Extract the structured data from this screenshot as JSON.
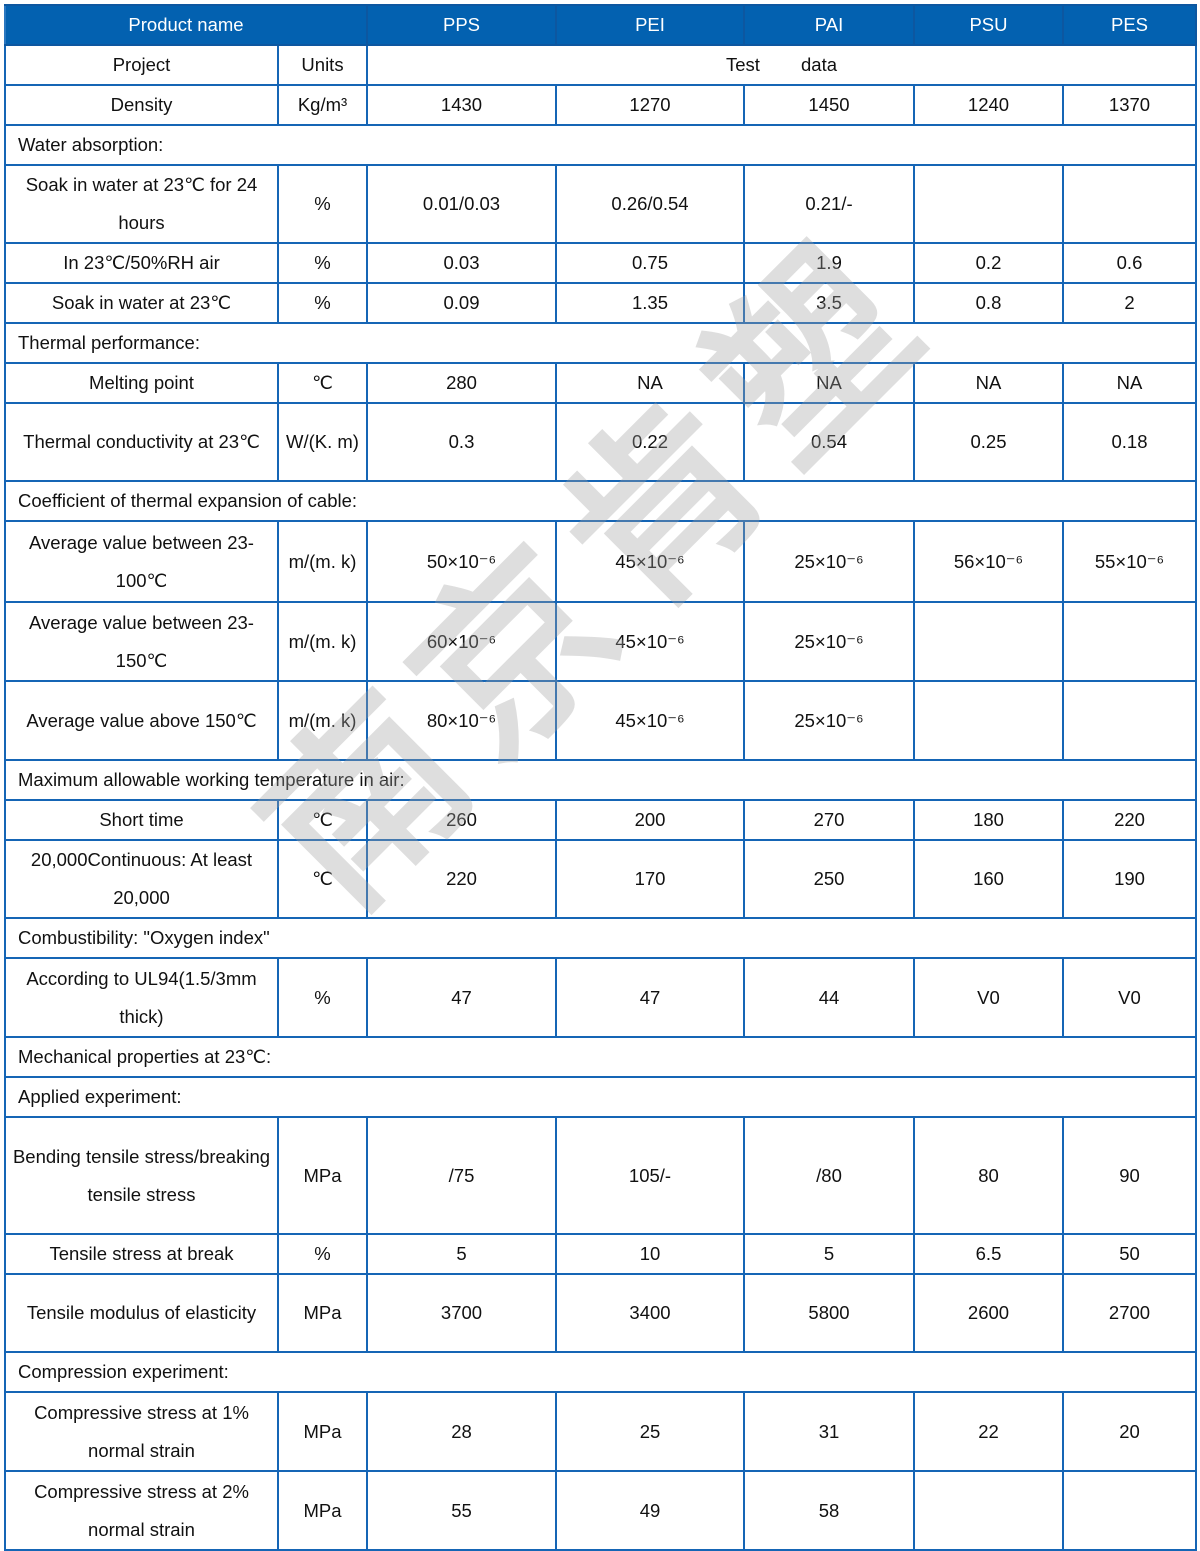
{
  "watermark": "南京肯塑",
  "colors": {
    "header_bg": "#0361b0",
    "border": "#1565b5"
  },
  "header": {
    "label": "Product name",
    "columns": [
      "PPS",
      "PEI",
      "PAI",
      "PSU",
      "PES"
    ]
  },
  "subheader": {
    "project": "Project",
    "units": "Units",
    "test_data": "Test        data"
  },
  "rows": [
    {
      "type": "data",
      "h": 40,
      "name": "Density",
      "unit": "Kg/m³",
      "values": [
        "1430",
        "1270",
        "1450",
        "1240",
        "1370"
      ]
    },
    {
      "type": "section",
      "h": 40,
      "label": "Water absorption:"
    },
    {
      "type": "data",
      "h": 78,
      "name": "Soak in water at 23℃ for 24 hours",
      "unit": "%",
      "values": [
        "0.01/0.03",
        "0.26/0.54",
        "0.21/-",
        "",
        ""
      ]
    },
    {
      "type": "data",
      "h": 40,
      "name": "In 23℃/50%RH air",
      "unit": "%",
      "values": [
        "0.03",
        "0.75",
        "1.9",
        "0.2",
        "0.6"
      ]
    },
    {
      "type": "data",
      "h": 40,
      "name": "Soak in water at 23℃",
      "unit": "%",
      "values": [
        "0.09",
        "1.35",
        "3.5",
        "0.8",
        "2"
      ]
    },
    {
      "type": "section",
      "h": 40,
      "label": "Thermal performance:"
    },
    {
      "type": "data",
      "h": 40,
      "name": "Melting point",
      "unit": "℃",
      "values": [
        "280",
        "NA",
        "NA",
        "NA",
        "NA"
      ]
    },
    {
      "type": "data",
      "h": 78,
      "name": "Thermal conductivity at 23℃",
      "unit": "W/(K. m)",
      "values": [
        "0.3",
        "0.22",
        "0.54",
        "0.25",
        "0.18"
      ]
    },
    {
      "type": "section",
      "h": 40,
      "label": "Coefficient of thermal expansion of cable:"
    },
    {
      "type": "data",
      "h": 81,
      "name": "Average value between 23-100℃",
      "unit": "m/(m. k)",
      "values": [
        "50×10⁻⁶",
        "45×10⁻⁶",
        "25×10⁻⁶",
        "56×10⁻⁶",
        "55×10⁻⁶"
      ]
    },
    {
      "type": "data",
      "h": 79,
      "name": "Average value between 23-150℃",
      "unit": "m/(m. k)",
      "values": [
        "60×10⁻⁶",
        "45×10⁻⁶",
        "25×10⁻⁶",
        "",
        ""
      ]
    },
    {
      "type": "data",
      "h": 79,
      "name": "Average value above 150℃",
      "unit": "m/(m. k)",
      "values": [
        "80×10⁻⁶",
        "45×10⁻⁶",
        "25×10⁻⁶",
        "",
        ""
      ]
    },
    {
      "type": "section",
      "h": 40,
      "label": "Maximum allowable working temperature in air:"
    },
    {
      "type": "data",
      "h": 40,
      "name": "Short time",
      "unit": "℃",
      "values": [
        "260",
        "200",
        "270",
        "180",
        "220"
      ]
    },
    {
      "type": "data",
      "h": 78,
      "name": "20,000Continuous: At least 20,000",
      "unit": "℃",
      "values": [
        "220",
        "170",
        "250",
        "160",
        "190"
      ]
    },
    {
      "type": "section",
      "h": 40,
      "label": "Combustibility: \"Oxygen index\""
    },
    {
      "type": "data",
      "h": 79,
      "name": "According to UL94(1.5/3mm thick)",
      "unit": "%",
      "values": [
        "47",
        "47",
        "44",
        "V0",
        "V0"
      ]
    },
    {
      "type": "section",
      "h": 40,
      "label": "Mechanical properties at 23℃:"
    },
    {
      "type": "section",
      "h": 39,
      "label": "Applied experiment:"
    },
    {
      "type": "data",
      "h": 117,
      "name": "Bending tensile stress/breaking tensile stress",
      "unit": "MPa",
      "values": [
        "/75",
        "105/-",
        "/80",
        "80",
        "90"
      ]
    },
    {
      "type": "data",
      "h": 40,
      "name": "Tensile stress at break",
      "unit": "%",
      "values": [
        "5",
        "10",
        "5",
        "6.5",
        "50"
      ]
    },
    {
      "type": "data",
      "h": 78,
      "name": "Tensile modulus of elasticity",
      "unit": "MPa",
      "values": [
        "3700",
        "3400",
        "5800",
        "2600",
        "2700"
      ]
    },
    {
      "type": "section",
      "h": 40,
      "label": "Compression experiment:"
    },
    {
      "type": "data",
      "h": 79,
      "name": "Compressive stress at 1% normal strain",
      "unit": "MPa",
      "values": [
        "28",
        "25",
        "31",
        "22",
        "20"
      ]
    },
    {
      "type": "data",
      "h": 79,
      "name": "Compressive stress at 2% normal strain",
      "unit": "MPa",
      "values": [
        "55",
        "49",
        "58",
        "",
        ""
      ]
    }
  ]
}
